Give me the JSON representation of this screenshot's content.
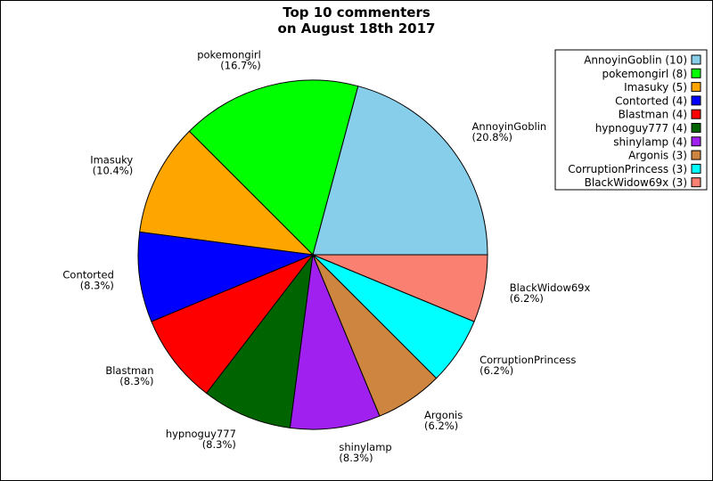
{
  "chart_data": {
    "type": "pie",
    "title_lines": [
      "Top 10 commenters",
      "on August 18th 2017"
    ],
    "legend_placement": "top-right",
    "slices": [
      {
        "name": "AnnoyinGoblin",
        "value": 10,
        "pct": "20.8%",
        "legend": "AnnoyinGoblin (10)",
        "color": "#87CEEB"
      },
      {
        "name": "pokemongirl",
        "value": 8,
        "pct": "16.7%",
        "legend": "pokemongirl (8)",
        "color": "#00FF00"
      },
      {
        "name": "Imasuky",
        "value": 5,
        "pct": "10.4%",
        "legend": "Imasuky (5)",
        "color": "#FFA500"
      },
      {
        "name": "Contorted",
        "value": 4,
        "pct": "8.3%",
        "legend": "Contorted (4)",
        "color": "#0000FF"
      },
      {
        "name": "Blastman",
        "value": 4,
        "pct": "8.3%",
        "legend": "Blastman (4)",
        "color": "#FF0000"
      },
      {
        "name": "hypnoguy777",
        "value": 4,
        "pct": "8.3%",
        "legend": "hypnoguy777 (4)",
        "color": "#006400"
      },
      {
        "name": "shinylamp",
        "value": 4,
        "pct": "8.3%",
        "legend": "shinylamp (4)",
        "color": "#A020F0"
      },
      {
        "name": "Argonis",
        "value": 3,
        "pct": "6.2%",
        "legend": "Argonis (3)",
        "color": "#CD853F"
      },
      {
        "name": "CorruptionPrincess",
        "value": 3,
        "pct": "6.2%",
        "legend": "CorruptionPrincess (3)",
        "color": "#00FFFF"
      },
      {
        "name": "BlackWidow69x",
        "value": 3,
        "pct": "6.2%",
        "legend": "BlackWidow69x (3)",
        "color": "#FA8072"
      }
    ]
  }
}
